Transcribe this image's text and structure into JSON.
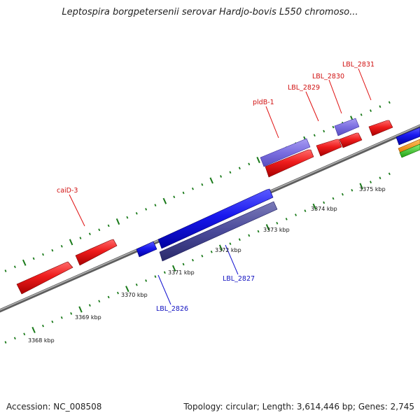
{
  "title": "Leptospira borgpetersenii serovar Hardjo-bovis L550 chromoso...",
  "footer": {
    "accession": "Accession: NC_008508",
    "summary": "Topology: circular; Length: 3,614,446 bp; Genes: 2,745"
  },
  "colors": {
    "backbone": "#8a8a8a",
    "tick": "#1a7a1a",
    "forward_cds": "#e81818",
    "reverse_cds": "#1414e6",
    "forward_pale": "#7a6ee0",
    "reverse_dark": "#4a4a9a",
    "label_forward": "#d01010",
    "label_reverse": "#1010c0"
  },
  "coordinate_labels": [
    "3368 kbp",
    "3369 kbp",
    "3370 kbp",
    "3371 kbp",
    "3372 kbp",
    "3373 kbp",
    "3374 kbp",
    "3375 kbp"
  ],
  "gene_labels_forward": [
    "caiD-3",
    "pldB-1",
    "LBL_2829",
    "LBL_2830",
    "LBL_2831"
  ],
  "gene_labels_reverse": [
    "LBL_2826",
    "LBL_2827"
  ]
}
